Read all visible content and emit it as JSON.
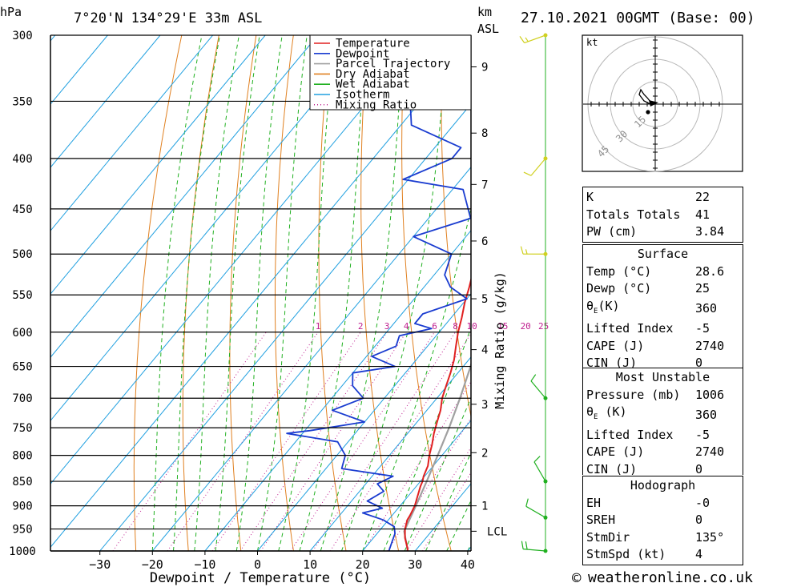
{
  "header": {
    "pressure_unit": "hPa",
    "location": "7°20'N  134°29'E  33m  ASL",
    "km_unit": "km",
    "asl_unit": "ASL",
    "datetime": "27.10.2021  00GMT  (Base: 00)"
  },
  "footer": {
    "copyright_glyph": "©",
    "site": "weatheronline.co.uk"
  },
  "chart_data": {
    "type": "line",
    "title": "",
    "xlabel": "Dewpoint / Temperature (°C)",
    "ylabel": "hPa",
    "right_label": "Mixing Ratio (g/kg)",
    "x_ticks": [
      -30,
      -20,
      -10,
      0,
      10,
      20,
      30,
      40
    ],
    "pressure_levels": [
      300,
      350,
      400,
      450,
      500,
      550,
      600,
      650,
      700,
      750,
      800,
      850,
      900,
      950,
      1000
    ],
    "km_ticks": [
      {
        "label": "9",
        "p": 323
      },
      {
        "label": "8",
        "p": 377
      },
      {
        "label": "7",
        "p": 425
      },
      {
        "label": "6",
        "p": 485
      },
      {
        "label": "5",
        "p": 555
      },
      {
        "label": "4",
        "p": 625
      },
      {
        "label": "3",
        "p": 710
      },
      {
        "label": "2",
        "p": 795
      },
      {
        "label": "1",
        "p": 900
      },
      {
        "label": "LCL",
        "p": 955
      }
    ],
    "mixing_ratio_labels": [
      "1",
      "2",
      "3",
      "4",
      "6",
      "8",
      "10",
      "15",
      "20",
      "25"
    ],
    "legend": {
      "placement": "top-right",
      "entries": [
        {
          "name": "Temperature",
          "color": "#e02020",
          "style": "solid"
        },
        {
          "name": "Dewpoint",
          "color": "#1a3cd0",
          "style": "solid"
        },
        {
          "name": "Parcel Trajectory",
          "color": "#a0a0a0",
          "style": "solid"
        },
        {
          "name": "Dry Adiabat",
          "color": "#e08020",
          "style": "solid"
        },
        {
          "name": "Wet Adiabat",
          "color": "#20b020",
          "style": "solid"
        },
        {
          "name": "Isotherm",
          "color": "#20a0e0",
          "style": "solid"
        },
        {
          "name": "Mixing Ratio",
          "color": "#c02090",
          "style": "dotted"
        }
      ]
    },
    "temperature": [
      {
        "p": 1000,
        "t": 28.6
      },
      {
        "p": 990,
        "t": 27.8
      },
      {
        "p": 970,
        "t": 26.0
      },
      {
        "p": 950,
        "t": 24.6
      },
      {
        "p": 930,
        "t": 23.6
      },
      {
        "p": 920,
        "t": 23.4
      },
      {
        "p": 900,
        "t": 22.8
      },
      {
        "p": 880,
        "t": 21.8
      },
      {
        "p": 860,
        "t": 20.8
      },
      {
        "p": 850,
        "t": 20.4
      },
      {
        "p": 840,
        "t": 19.8
      },
      {
        "p": 820,
        "t": 19.0
      },
      {
        "p": 800,
        "t": 17.6
      },
      {
        "p": 780,
        "t": 16.4
      },
      {
        "p": 760,
        "t": 15.0
      },
      {
        "p": 740,
        "t": 13.8
      },
      {
        "p": 720,
        "t": 12.6
      },
      {
        "p": 700,
        "t": 11.0
      },
      {
        "p": 680,
        "t": 9.8
      },
      {
        "p": 660,
        "t": 8.6
      },
      {
        "p": 640,
        "t": 7.2
      },
      {
        "p": 620,
        "t": 5.4
      },
      {
        "p": 600,
        "t": 3.6
      },
      {
        "p": 580,
        "t": 2.0
      },
      {
        "p": 560,
        "t": 0.2
      },
      {
        "p": 540,
        "t": -1.4
      },
      {
        "p": 520,
        "t": -3.2
      },
      {
        "p": 500,
        "t": -5.2
      },
      {
        "p": 480,
        "t": -7.4
      },
      {
        "p": 460,
        "t": -9.8
      },
      {
        "p": 440,
        "t": -12.4
      },
      {
        "p": 420,
        "t": -14.8
      },
      {
        "p": 400,
        "t": -17.8
      },
      {
        "p": 380,
        "t": -20.8
      },
      {
        "p": 360,
        "t": -23.2
      },
      {
        "p": 340,
        "t": -26.8
      },
      {
        "p": 320,
        "t": -30.6
      },
      {
        "p": 305,
        "t": -33.6
      },
      {
        "p": 300,
        "t": -35.0
      }
    ],
    "dewpoint": [
      {
        "p": 1000,
        "t": 25.0
      },
      {
        "p": 980,
        "t": 24.2
      },
      {
        "p": 960,
        "t": 23.4
      },
      {
        "p": 945,
        "t": 22.2
      },
      {
        "p": 930,
        "t": 19.0
      },
      {
        "p": 915,
        "t": 14.0
      },
      {
        "p": 905,
        "t": 17.0
      },
      {
        "p": 890,
        "t": 13.0
      },
      {
        "p": 870,
        "t": 14.6
      },
      {
        "p": 855,
        "t": 12.2
      },
      {
        "p": 840,
        "t": 14.0
      },
      {
        "p": 825,
        "t": 3.0
      },
      {
        "p": 800,
        "t": 1.6
      },
      {
        "p": 775,
        "t": -2.0
      },
      {
        "p": 760,
        "t": -13.0
      },
      {
        "p": 755,
        "t": -9.0
      },
      {
        "p": 740,
        "t": 0.0
      },
      {
        "p": 720,
        "t": -8.0
      },
      {
        "p": 700,
        "t": -4.0
      },
      {
        "p": 680,
        "t": -8.0
      },
      {
        "p": 660,
        "t": -10.0
      },
      {
        "p": 650,
        "t": -3.0
      },
      {
        "p": 635,
        "t": -9.0
      },
      {
        "p": 620,
        "t": -6.0
      },
      {
        "p": 605,
        "t": -7.0
      },
      {
        "p": 595,
        "t": -2.0
      },
      {
        "p": 588,
        "t": -6.0
      },
      {
        "p": 575,
        "t": -6.0
      },
      {
        "p": 555,
        "t": 0.0
      },
      {
        "p": 540,
        "t": -5.0
      },
      {
        "p": 525,
        "t": -8.0
      },
      {
        "p": 500,
        "t": -10.0
      },
      {
        "p": 480,
        "t": -20.0
      },
      {
        "p": 460,
        "t": -12.0
      },
      {
        "p": 430,
        "t": -18.0
      },
      {
        "p": 420,
        "t": -31.0
      },
      {
        "p": 400,
        "t": -25.0
      },
      {
        "p": 390,
        "t": -25.0
      },
      {
        "p": 370,
        "t": -38.0
      },
      {
        "p": 350,
        "t": -42.0
      },
      {
        "p": 320,
        "t": -45.0
      },
      {
        "p": 300,
        "t": -45.0
      }
    ],
    "parcel": [
      {
        "p": 1000,
        "t": 28.6
      },
      {
        "p": 955,
        "t": 24.8
      },
      {
        "p": 900,
        "t": 23.0
      },
      {
        "p": 850,
        "t": 21.2
      },
      {
        "p": 800,
        "t": 19.2
      },
      {
        "p": 750,
        "t": 17.0
      },
      {
        "p": 700,
        "t": 14.4
      },
      {
        "p": 650,
        "t": 11.4
      },
      {
        "p": 600,
        "t": 7.8
      },
      {
        "p": 550,
        "t": 3.6
      },
      {
        "p": 500,
        "t": -1.4
      },
      {
        "p": 450,
        "t": -7.2
      },
      {
        "p": 400,
        "t": -14.2
      },
      {
        "p": 350,
        "t": -22.6
      },
      {
        "p": 300,
        "t": -32.6
      }
    ],
    "wind_barbs": [
      {
        "p": 300,
        "dir": 250,
        "speed_kt": 15
      },
      {
        "p": 400,
        "dir": 220,
        "speed_kt": 10
      },
      {
        "p": 500,
        "dir": 270,
        "speed_kt": 15
      },
      {
        "p": 700,
        "dir": 320,
        "speed_kt": 10
      },
      {
        "p": 850,
        "dir": 330,
        "speed_kt": 10
      },
      {
        "p": 925,
        "dir": 300,
        "speed_kt": 10
      },
      {
        "p": 1000,
        "dir": 275,
        "speed_kt": 20
      }
    ]
  },
  "hodograph": {
    "unit": "kt",
    "ring_labels": [
      "15",
      "30",
      "45"
    ]
  },
  "indices": {
    "k_label": "K",
    "k_value": "22",
    "tt_label": "Totals Totals",
    "tt_value": "41",
    "pw_label": "PW (cm)",
    "pw_value": "3.84"
  },
  "surface": {
    "heading": "Surface",
    "temp_label": "Temp (°C)",
    "temp_value": "28.6",
    "dewp_label": "Dewp (°C)",
    "dewp_value": "25",
    "theta_label_main": "θ",
    "theta_label_sub": "E",
    "theta_label_unit": "(K)",
    "theta_value": "360",
    "li_label": "Lifted Index",
    "li_value": "-5",
    "cape_label": "CAPE (J)",
    "cape_value": "2740",
    "cin_label": "CIN (J)",
    "cin_value": "0"
  },
  "most_unstable": {
    "heading": "Most Unstable",
    "pressure_label": "Pressure (mb)",
    "pressure_value": "1006",
    "theta_label_main": "θ",
    "theta_label_sub": "E",
    "theta_label_unit": " (K)",
    "theta_value": "360",
    "li_label": "Lifted Index",
    "li_value": "-5",
    "cape_label": "CAPE (J)",
    "cape_value": "2740",
    "cin_label": "CIN (J)",
    "cin_value": "0"
  },
  "hodograph_table": {
    "heading": "Hodograph",
    "eh_label": "EH",
    "eh_value": "-0",
    "sreh_label": "SREH",
    "sreh_value": "0",
    "stmdir_label": "StmDir",
    "stmdir_value": "135°",
    "stmspd_label": "StmSpd (kt)",
    "stmspd_value": "4"
  }
}
